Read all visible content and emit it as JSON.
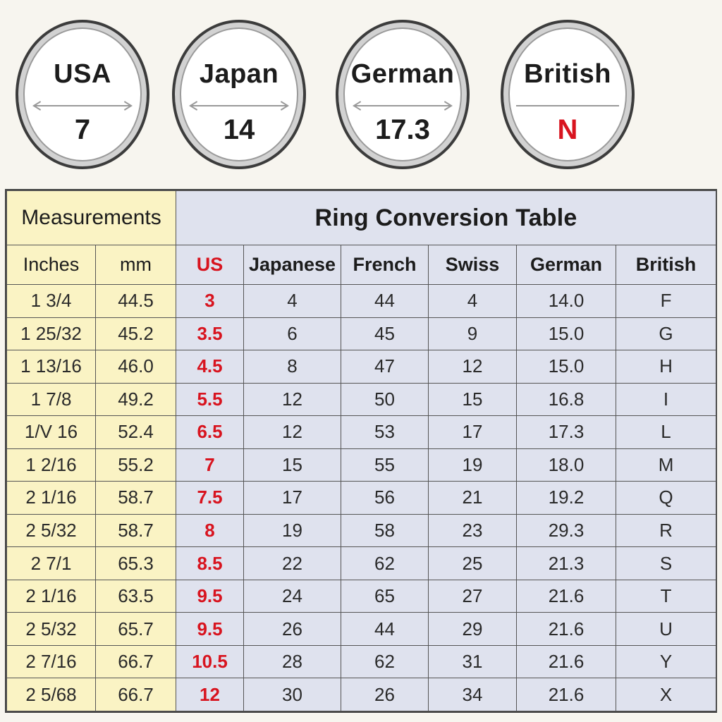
{
  "circles": [
    {
      "label": "USA",
      "value": "7",
      "accent": false
    },
    {
      "label": "Japan",
      "value": "14",
      "accent": false
    },
    {
      "label": "German",
      "value": "17.3",
      "accent": false
    },
    {
      "label": "British",
      "value": "N",
      "accent": true
    }
  ],
  "table": {
    "measurements_header": "Measurements",
    "title": "Ring Conversion Table",
    "columns": [
      "Inches",
      "mm",
      "US",
      "Japanese",
      "French",
      "Swiss",
      "German",
      "British"
    ],
    "rows": [
      [
        "1 3/4",
        "44.5",
        "3",
        "4",
        "44",
        "4",
        "14.0",
        "F"
      ],
      [
        "1 25/32",
        "45.2",
        "3.5",
        "6",
        "45",
        "9",
        "15.0",
        "G"
      ],
      [
        "1 13/16",
        "46.0",
        "4.5",
        "8",
        "47",
        "12",
        "15.0",
        "H"
      ],
      [
        "1 7/8",
        "49.2",
        "5.5",
        "12",
        "50",
        "15",
        "16.8",
        "I"
      ],
      [
        "1/V 16",
        "52.4",
        "6.5",
        "12",
        "53",
        "17",
        "17.3",
        "L"
      ],
      [
        "1 2/16",
        "55.2",
        "7",
        "15",
        "55",
        "19",
        "18.0",
        "M"
      ],
      [
        "2 1/16",
        "58.7",
        "7.5",
        "17",
        "56",
        "21",
        "19.2",
        "Q"
      ],
      [
        "2 5/32",
        "58.7",
        "8",
        "19",
        "58",
        "23",
        "29.3",
        "R"
      ],
      [
        "2 7/1",
        "65.3",
        "8.5",
        "22",
        "62",
        "25",
        "21.3",
        "S"
      ],
      [
        "2 1/16",
        "63.5",
        "9.5",
        "24",
        "65",
        "27",
        "21.6",
        "T"
      ],
      [
        "2 5/32",
        "65.7",
        "9.5",
        "26",
        "44",
        "29",
        "21.6",
        "U"
      ],
      [
        "2 7/16",
        "66.7",
        "10.5",
        "28",
        "62",
        "31",
        "21.6",
        "Y"
      ],
      [
        "2 5/68",
        "66.7",
        "12",
        "30",
        "26",
        "34",
        "21.6",
        "X"
      ]
    ]
  },
  "colors": {
    "background": "#f7f5ef",
    "accent_red": "#d8141f",
    "measure_fill": "#faf3c4",
    "table_fill": "#dfe2ee"
  }
}
